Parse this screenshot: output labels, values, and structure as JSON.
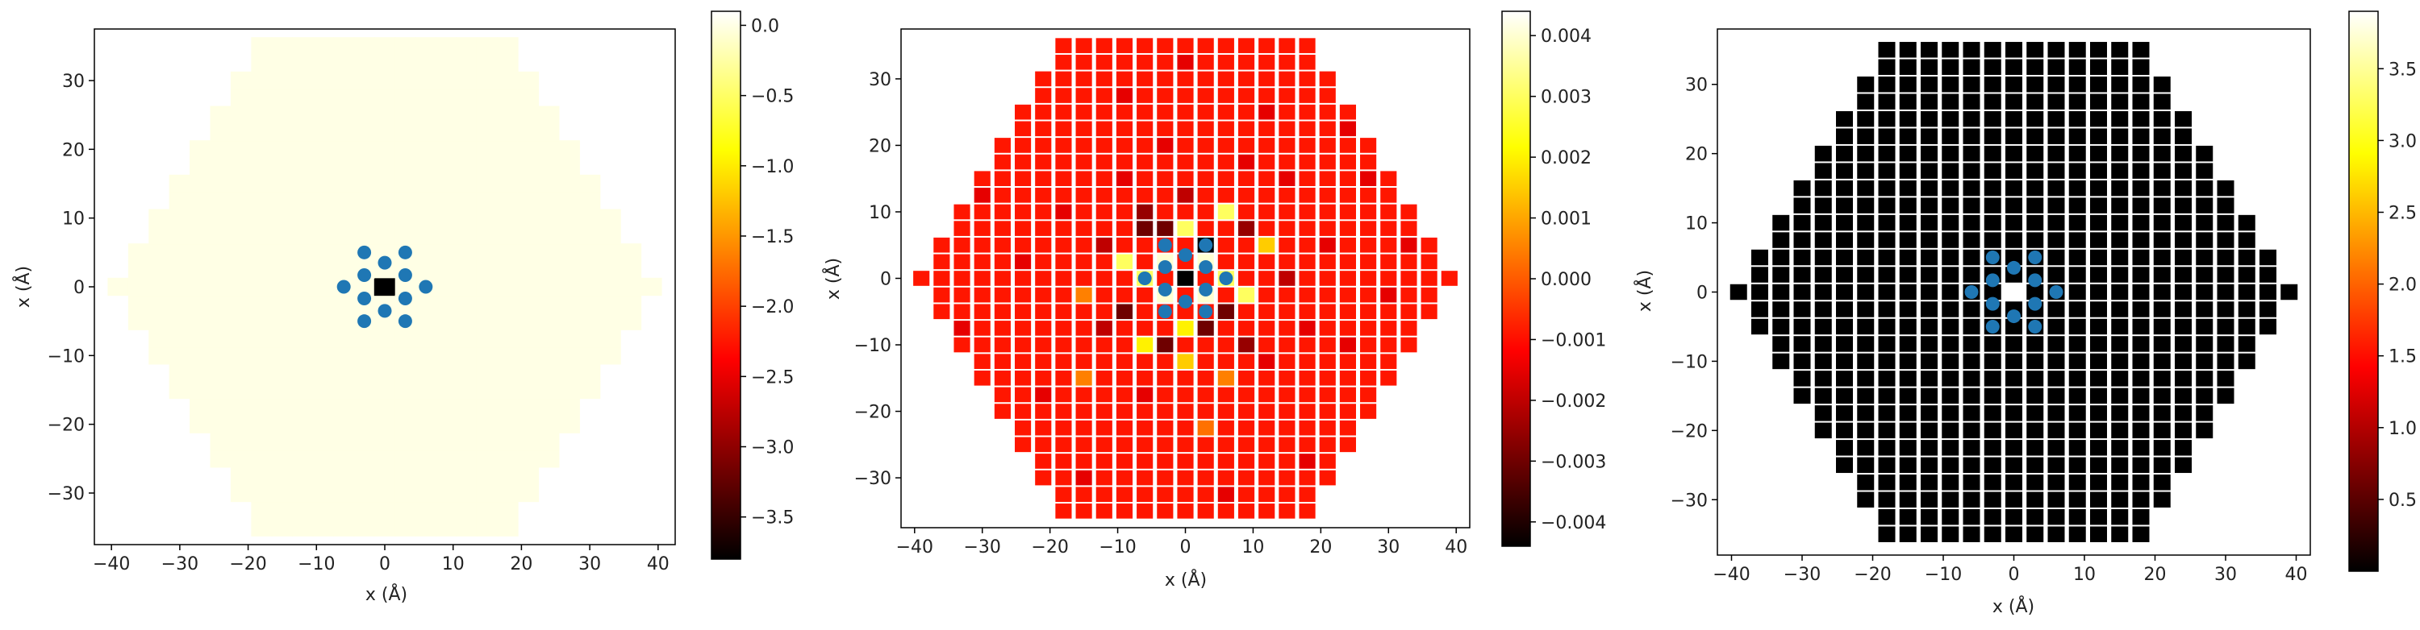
{
  "chart_data": [
    {
      "type": "heatmap",
      "mode": "full",
      "xlabel": "x (Å)",
      "ylabel": "x (Å)",
      "xlim": [
        -42.5,
        42.5
      ],
      "ylim": [
        -37.5,
        37.5
      ],
      "x_ticks": [
        -40,
        -30,
        -20,
        -10,
        0,
        10,
        20,
        30,
        40
      ],
      "y_ticks": [
        -30,
        -20,
        -10,
        0,
        10,
        20,
        30
      ],
      "colorbar": {
        "min": -3.8,
        "max": 0.1,
        "ticks": [
          0.0,
          -0.5,
          -1.0,
          -1.5,
          -2.0,
          -2.5,
          -3.0,
          -3.5
        ],
        "tick_labels": [
          "0.0",
          "−0.5",
          "−1.0",
          "−1.5",
          "−2.0",
          "−2.5",
          "−3.0",
          "−3.5"
        ]
      },
      "background_value": 0.0,
      "special_cells": [
        {
          "x": 0,
          "y": 0,
          "value": -3.8
        }
      ],
      "points": [
        [
          -3,
          5
        ],
        [
          3,
          5
        ],
        [
          0,
          3.5
        ],
        [
          -6,
          0
        ],
        [
          -3,
          1.7
        ],
        [
          3,
          1.7
        ],
        [
          -3,
          -1.7
        ],
        [
          3,
          -1.7
        ],
        [
          0,
          -3.5
        ],
        [
          6,
          0
        ],
        [
          -3,
          -5
        ],
        [
          3,
          -5
        ]
      ]
    },
    {
      "type": "heatmap",
      "mode": "slabs",
      "xlabel": "x (Å)",
      "ylabel": "x (Å)",
      "xlim": [
        -42,
        42
      ],
      "ylim": [
        -37.5,
        37.5
      ],
      "x_ticks": [
        -40,
        -30,
        -20,
        -10,
        0,
        10,
        20,
        30,
        40
      ],
      "y_ticks": [
        -30,
        -20,
        -10,
        0,
        10,
        20,
        30
      ],
      "colorbar": {
        "min": -0.0044,
        "max": 0.0044,
        "ticks": [
          0.004,
          0.003,
          0.002,
          0.001,
          0.0,
          -0.001,
          -0.002,
          -0.003,
          -0.004
        ],
        "tick_labels": [
          "0.004",
          "0.003",
          "0.002",
          "0.001",
          "0.000",
          "−0.001",
          "−0.002",
          "−0.003",
          "−0.004"
        ]
      },
      "background_value": -0.0009,
      "special_cells": [
        {
          "x": 0,
          "y": 0,
          "value": -0.0044
        },
        {
          "x": 3,
          "y": 5,
          "value": -0.0044
        },
        {
          "x": -3,
          "y": 2.5,
          "value": 0.004
        },
        {
          "x": 3,
          "y": 2.5,
          "value": 0.004
        },
        {
          "x": -6,
          "y": 0,
          "value": 0.003
        },
        {
          "x": 6,
          "y": 0,
          "value": 0.003
        },
        {
          "x": -3,
          "y": -2.5,
          "value": 0.004
        },
        {
          "x": 3,
          "y": -2.5,
          "value": 0.004
        },
        {
          "x": 0,
          "y": 7.5,
          "value": 0.003
        },
        {
          "x": 0,
          "y": -7.5,
          "value": 0.002
        },
        {
          "x": -3,
          "y": 7.5,
          "value": -0.003
        },
        {
          "x": 6,
          "y": -5,
          "value": -0.003
        },
        {
          "x": -6,
          "y": 7.5,
          "value": -0.003
        },
        {
          "x": -6,
          "y": 10,
          "value": -0.0025
        },
        {
          "x": 3,
          "y": -7.5,
          "value": -0.003
        },
        {
          "x": -3,
          "y": -10,
          "value": -0.003
        },
        {
          "x": 9,
          "y": -2.5,
          "value": 0.003
        },
        {
          "x": -9,
          "y": 2.5,
          "value": 0.003
        },
        {
          "x": 9,
          "y": 7.5,
          "value": -0.0025
        },
        {
          "x": -9,
          "y": -5,
          "value": -0.003
        },
        {
          "x": 6,
          "y": 10,
          "value": 0.003
        },
        {
          "x": -6,
          "y": -10,
          "value": 0.002
        },
        {
          "x": 9,
          "y": -10,
          "value": -0.0025
        },
        {
          "x": -12,
          "y": -7.5,
          "value": -0.002
        },
        {
          "x": 12,
          "y": 5,
          "value": 0.0015
        },
        {
          "x": -12,
          "y": 5,
          "value": -0.002
        },
        {
          "x": 0,
          "y": 12.5,
          "value": -0.002
        },
        {
          "x": 0,
          "y": -12.5,
          "value": 0.0015
        },
        {
          "x": 15,
          "y": 0,
          "value": -0.002
        },
        {
          "x": -15,
          "y": -2.5,
          "value": 0.0005
        },
        {
          "x": 6,
          "y": -15,
          "value": 0.0005
        },
        {
          "x": -9,
          "y": 15,
          "value": -0.0015
        },
        {
          "x": 12,
          "y": -12.5,
          "value": -0.0015
        },
        {
          "x": -6,
          "y": -17.5,
          "value": -0.0015
        },
        {
          "x": 9,
          "y": 17.5,
          "value": -0.0015
        },
        {
          "x": 18,
          "y": -7.5,
          "value": -0.0015
        },
        {
          "x": -18,
          "y": 10,
          "value": -0.0015
        },
        {
          "x": -3,
          "y": 20,
          "value": -0.0015
        },
        {
          "x": 15,
          "y": 15,
          "value": -0.0015
        },
        {
          "x": -15,
          "y": -15,
          "value": 0.0005
        },
        {
          "x": 21,
          "y": 5,
          "value": -0.0015
        },
        {
          "x": 24,
          "y": -10,
          "value": -0.0015
        },
        {
          "x": -24,
          "y": 2.5,
          "value": -0.0015
        },
        {
          "x": 3,
          "y": -22.5,
          "value": 0.0003
        },
        {
          "x": -21,
          "y": -17.5,
          "value": -0.0015
        },
        {
          "x": 12,
          "y": 25,
          "value": -0.0015
        },
        {
          "x": -9,
          "y": 27.5,
          "value": -0.0015
        },
        {
          "x": 27,
          "y": 15,
          "value": -0.0015
        },
        {
          "x": 30,
          "y": -2.5,
          "value": -0.0015
        },
        {
          "x": -30,
          "y": 12.5,
          "value": -0.0015
        },
        {
          "x": 0,
          "y": 32.5,
          "value": -0.0015
        },
        {
          "x": 18,
          "y": -27.5,
          "value": -0.0015
        },
        {
          "x": -15,
          "y": -30,
          "value": -0.0015
        },
        {
          "x": 33,
          "y": 5,
          "value": -0.0015
        },
        {
          "x": -33,
          "y": -7.5,
          "value": -0.0015
        },
        {
          "x": 6,
          "y": -32.5,
          "value": -0.0015
        },
        {
          "x": 24,
          "y": 22.5,
          "value": -0.0015
        }
      ],
      "points": [
        [
          -3,
          5
        ],
        [
          3,
          5
        ],
        [
          0,
          3.5
        ],
        [
          -6,
          0
        ],
        [
          -3,
          1.7
        ],
        [
          3,
          1.7
        ],
        [
          -3,
          -1.7
        ],
        [
          3,
          -1.7
        ],
        [
          0,
          -3.5
        ],
        [
          6,
          0
        ],
        [
          -3,
          -5
        ],
        [
          3,
          -5
        ]
      ]
    },
    {
      "type": "heatmap",
      "mode": "slabs",
      "xlabel": "x (Å)",
      "ylabel": "x (Å)",
      "xlim": [
        -42,
        42
      ],
      "ylim": [
        -38,
        38
      ],
      "x_ticks": [
        -40,
        -30,
        -20,
        -10,
        0,
        10,
        20,
        30,
        40
      ],
      "y_ticks": [
        -30,
        -20,
        -10,
        0,
        10,
        20,
        30
      ],
      "colorbar": {
        "min": 0.0,
        "max": 3.9,
        "ticks": [
          3.5,
          3.0,
          2.5,
          2.0,
          1.5,
          1.0,
          0.5
        ],
        "tick_labels": [
          "3.5",
          "3.0",
          "2.5",
          "2.0",
          "1.5",
          "1.0",
          "0.5"
        ]
      },
      "background_value": 0.0,
      "special_cells": [
        {
          "x": 0,
          "y": 0,
          "value": 3.9
        }
      ],
      "points": [
        [
          -3,
          5
        ],
        [
          3,
          5
        ],
        [
          0,
          3.5
        ],
        [
          -6,
          0
        ],
        [
          -3,
          1.7
        ],
        [
          3,
          1.7
        ],
        [
          -3,
          -1.7
        ],
        [
          3,
          -1.7
        ],
        [
          0,
          -3.5
        ],
        [
          6,
          0
        ],
        [
          -3,
          -5
        ],
        [
          3,
          -5
        ]
      ]
    }
  ]
}
